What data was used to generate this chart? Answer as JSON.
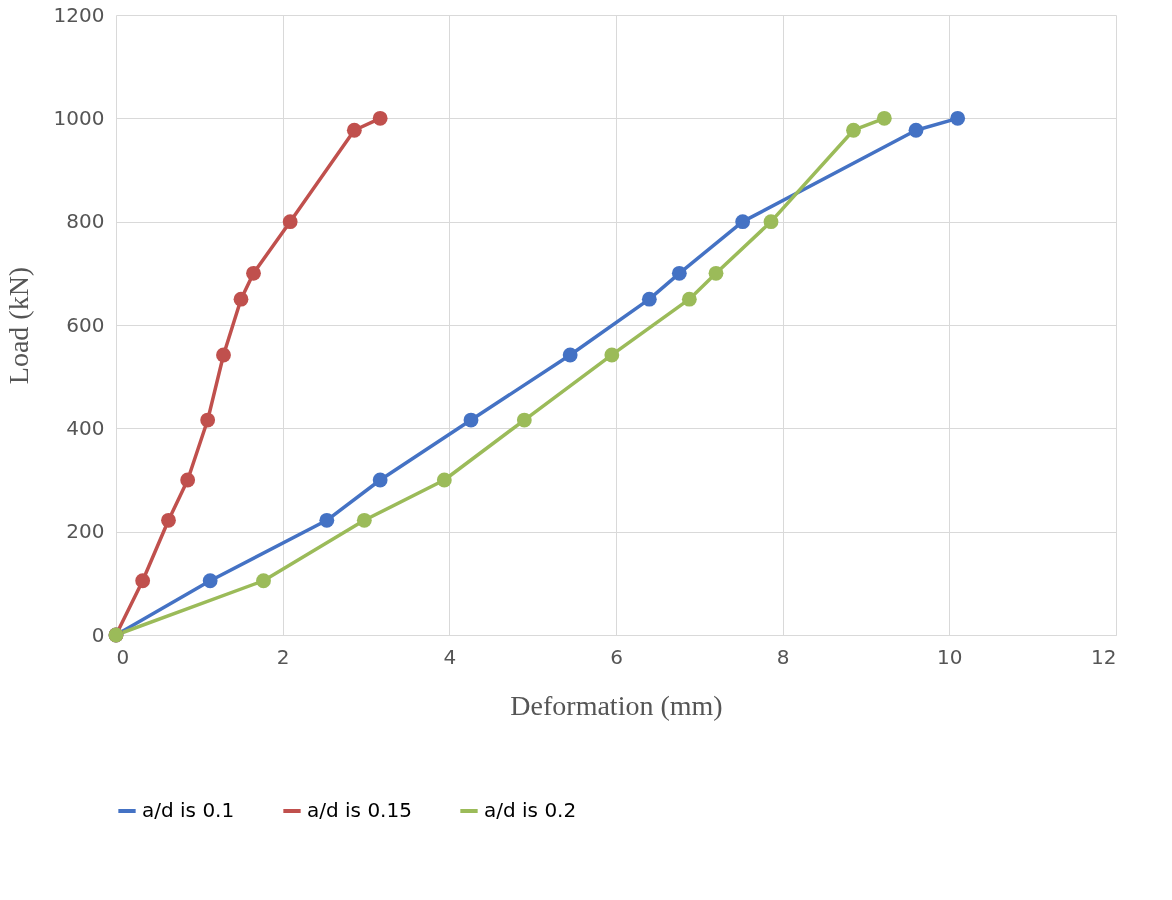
{
  "chart_data": {
    "type": "line",
    "xlabel": "Deformation (mm)",
    "ylabel": "Load (kN)",
    "xlim": [
      0,
      12
    ],
    "xticks": [
      0,
      2,
      4,
      6,
      8,
      10,
      12
    ],
    "ylim": [
      0,
      1200
    ],
    "yticks": [
      0,
      200,
      400,
      600,
      800,
      1000,
      1200
    ],
    "grid": true,
    "legend": "bottom",
    "marker": "circle",
    "line_style": "solid",
    "series": [
      {
        "name": "a/d is 0.1",
        "color": "#4472c4",
        "x": [
          0,
          1.13,
          2.53,
          3.17,
          4.26,
          5.45,
          6.4,
          6.76,
          7.52,
          9.6,
          10.1
        ],
        "values": [
          0,
          105,
          222,
          300,
          416,
          542,
          650,
          700,
          800,
          977,
          1000
        ]
      },
      {
        "name": "a/d is 0.15",
        "color": "#c0504d",
        "x": [
          0,
          0.32,
          0.63,
          0.86,
          1.1,
          1.29,
          1.5,
          1.65,
          2.09,
          2.86,
          3.17
        ],
        "values": [
          0,
          105,
          222,
          300,
          416,
          542,
          650,
          700,
          800,
          977,
          1000
        ]
      },
      {
        "name": "a/d is 0.2",
        "color": "#9bbb59",
        "x": [
          0,
          1.77,
          2.98,
          3.94,
          4.9,
          5.95,
          6.88,
          7.2,
          7.86,
          8.85,
          9.22
        ],
        "values": [
          0,
          105,
          222,
          300,
          416,
          542,
          650,
          700,
          800,
          977,
          1000
        ]
      }
    ]
  }
}
